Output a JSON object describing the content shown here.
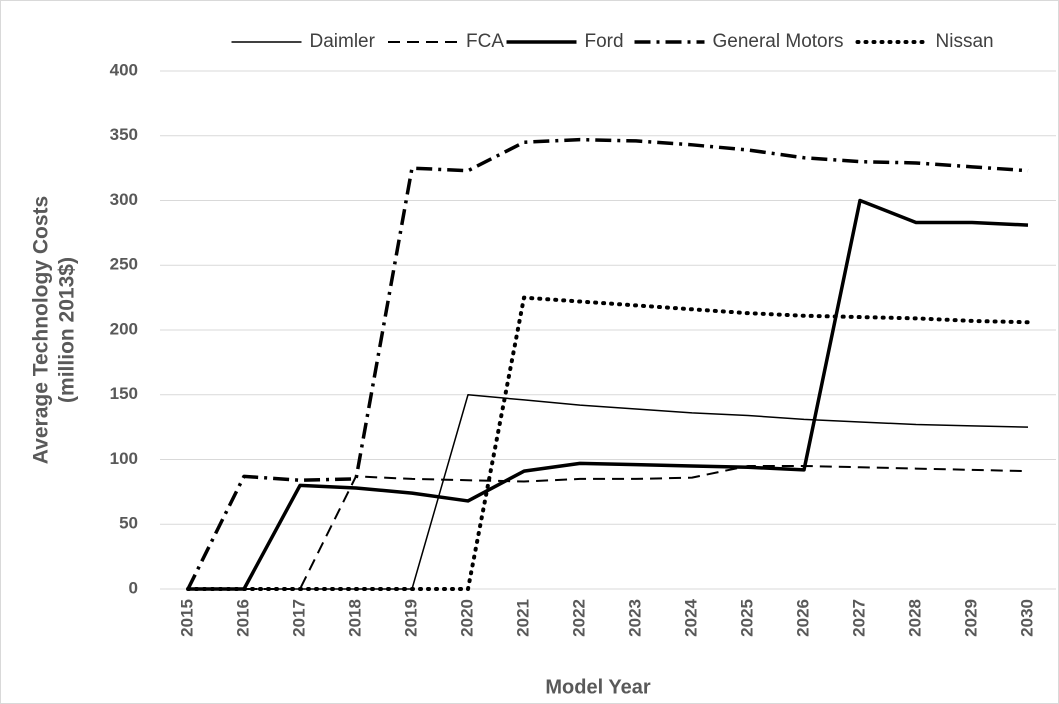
{
  "chart_data": {
    "type": "line",
    "y_label": [
      "Average Technology Costs",
      "(million 2013$)"
    ],
    "x_label": "Model Year",
    "categories": [
      "2015",
      "2016",
      "2017",
      "2018",
      "2019",
      "2020",
      "2021",
      "2022",
      "2023",
      "2024",
      "2025",
      "2026",
      "2027",
      "2028",
      "2029",
      "2030"
    ],
    "series": [
      {
        "name": "Daimler",
        "color": "#000000",
        "style": "thin",
        "values": [
          0,
          0,
          0,
          0,
          0,
          150,
          146,
          142,
          139,
          136,
          134,
          131,
          129,
          127,
          126,
          125
        ]
      },
      {
        "name": "FCA",
        "color": "#000000",
        "style": "dash",
        "values": [
          0,
          0,
          0,
          87,
          85,
          84,
          83,
          85,
          85,
          86,
          95,
          95,
          94,
          93,
          92,
          91
        ]
      },
      {
        "name": "Ford",
        "color": "#000000",
        "style": "thick",
        "values": [
          0,
          0,
          80,
          78,
          74,
          68,
          91,
          97,
          96,
          95,
          94,
          92,
          300,
          283,
          283,
          281
        ]
      },
      {
        "name": "General Motors",
        "color": "#000000",
        "style": "dashdot",
        "values": [
          0,
          87,
          84,
          85,
          325,
          323,
          345,
          347,
          346,
          343,
          339,
          333,
          330,
          329,
          326,
          323
        ]
      },
      {
        "name": "Nissan",
        "color": "#000000",
        "style": "dot",
        "values": [
          0,
          0,
          0,
          0,
          0,
          0,
          225,
          222,
          219,
          216,
          213,
          211,
          210,
          209,
          207,
          206
        ]
      }
    ],
    "ylim": [
      0,
      400
    ],
    "yticks": [
      0,
      50,
      100,
      150,
      200,
      250,
      300,
      350,
      400
    ],
    "grid": true,
    "legend": "top"
  }
}
